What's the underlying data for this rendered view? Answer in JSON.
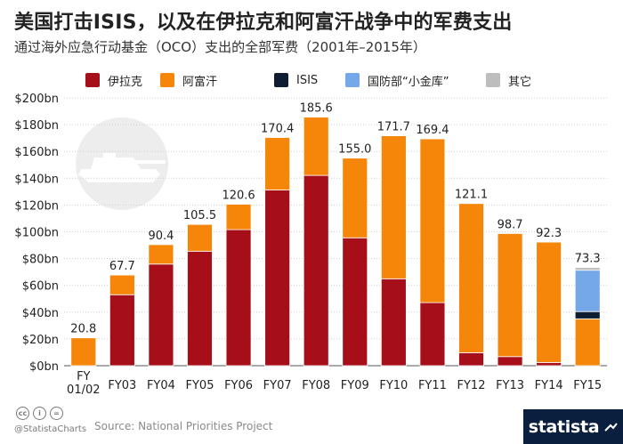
{
  "title": "美国打击ISIS，以及在伊拉克和阿富汗战争中的军费支出",
  "subtitle": "通过海外应急行动基金（OCO）支出的全部军费（2001年–2015年）",
  "chart_data": {
    "type": "bar",
    "stacked": true,
    "title": "美国打击ISIS，以及在伊拉克和阿富汗战争中的军费支出",
    "subtitle": "通过海外应急行动基金（OCO）支出的全部军费（2001年–2015年）",
    "categories": [
      "FY\n01/02",
      "FY03",
      "FY04",
      "FY05",
      "FY06",
      "FY07",
      "FY08",
      "FY09",
      "FY10",
      "FY11",
      "FY12",
      "FY13",
      "FY14",
      "FY15"
    ],
    "series": [
      {
        "name": "伊拉克",
        "color": "#a60f1a",
        "values": [
          0,
          53,
          75.9,
          85.5,
          101.6,
          131.2,
          142.1,
          95.5,
          64.9,
          47.1,
          9.7,
          6.8,
          2.4,
          0
        ]
      },
      {
        "name": "阿富汗",
        "color": "#f5860a",
        "values": [
          20.8,
          14.7,
          14.5,
          20,
          19,
          39.2,
          43.5,
          59.5,
          106.8,
          122.3,
          111.4,
          91.9,
          89.9,
          35
        ]
      },
      {
        "name": "ISIS",
        "color": "#0f1d33",
        "values": [
          0,
          0,
          0,
          0,
          0,
          0,
          0,
          0,
          0,
          0,
          0,
          0,
          0,
          5.4
        ]
      },
      {
        "name": "国防部“小金库”",
        "color": "#74a8e8",
        "values": [
          0,
          0,
          0,
          0,
          0,
          0,
          0,
          0,
          0,
          0,
          0,
          0,
          0,
          30.9
        ]
      },
      {
        "name": "其它",
        "color": "#bdbdbd",
        "values": [
          0,
          0,
          0,
          0,
          0,
          0,
          0,
          0,
          0,
          0,
          0,
          0,
          0,
          2
        ]
      }
    ],
    "totals": [
      "20.8",
      "67.7",
      "90.4",
      "105.5",
      "120.6",
      "170.4",
      "185.6",
      "155.0",
      "171.7",
      "169.4",
      "121.1",
      "98.7",
      "92.3",
      "73.3"
    ],
    "ylim": [
      0,
      200
    ],
    "yticks": [
      0,
      20,
      40,
      60,
      80,
      100,
      120,
      140,
      160,
      180,
      200
    ],
    "ytick_labels": [
      "$0bn",
      "$20bn",
      "$40bn",
      "$60bn",
      "$80bn",
      "$100bn",
      "$120bn",
      "$140bn",
      "$160bn",
      "$180bn",
      "$200bn"
    ],
    "xlabel": "",
    "ylabel": "",
    "grid": true,
    "legend_position": "top"
  },
  "legend": [
    {
      "label": "伊拉克",
      "color": "#a60f1a"
    },
    {
      "label": "阿富汗",
      "color": "#f5860a"
    },
    {
      "label": "ISIS",
      "color": "#0f1d33"
    },
    {
      "label": "国防部“小金库”",
      "color": "#74a8e8"
    },
    {
      "label": "其它",
      "color": "#bdbdbd"
    }
  ],
  "footer": {
    "handle": "@StatistaCharts",
    "source": "Source: National Priorities Project",
    "brand": "statista",
    "cc_icons": [
      "cc",
      "i",
      "="
    ]
  },
  "decoration": {
    "tank": "tank-icon",
    "brand_mark": "statista-mark-icon"
  }
}
